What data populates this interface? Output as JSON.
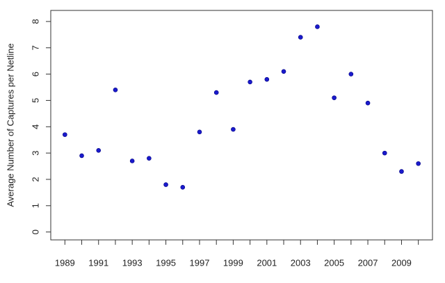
{
  "chart_data": {
    "type": "scatter",
    "y_label": "Average Number of Captures per Netline",
    "x": [
      1989,
      1990,
      1991,
      1992,
      1993,
      1994,
      1995,
      1996,
      1997,
      1998,
      1999,
      2000,
      2001,
      2002,
      2003,
      2004,
      2005,
      2006,
      2007,
      2008,
      2009,
      2010
    ],
    "values": [
      3.7,
      2.9,
      3.1,
      5.4,
      2.7,
      2.8,
      1.8,
      1.7,
      3.8,
      5.3,
      3.9,
      5.7,
      5.8,
      6.1,
      7.4,
      7.8,
      5.1,
      6.0,
      4.9,
      3.0,
      2.3,
      2.6
    ],
    "color": "#1a1acc",
    "xlim": [
      1988.16,
      2010.84
    ],
    "xticks": [
      1989,
      1991,
      1993,
      1995,
      1997,
      1999,
      2001,
      2003,
      2005,
      2007,
      2009
    ],
    "xminorticks": [
      1990,
      1992,
      1994,
      1996,
      1998,
      2000,
      2002,
      2004,
      2006,
      2008,
      2010
    ],
    "ylim": [
      -0.3,
      8.42
    ],
    "yticks": [
      0,
      1,
      2,
      3,
      4,
      5,
      6,
      7,
      8
    ],
    "grid": false
  }
}
